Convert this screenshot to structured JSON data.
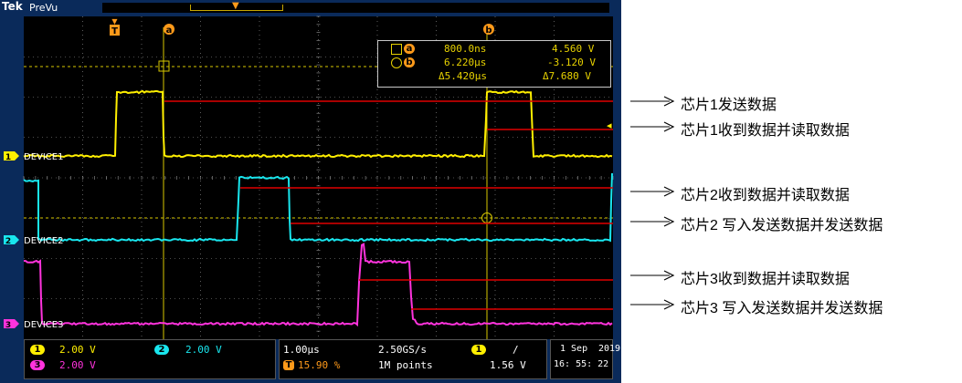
{
  "titlebar": {
    "brand": "Tek",
    "mode": "PreVu"
  },
  "channels": [
    {
      "id": "1",
      "label": "DEVICE1",
      "color": "#ffef00",
      "scale": "2.00 V"
    },
    {
      "id": "2",
      "label": "DEVICE2",
      "color": "#19e6ee",
      "scale": "2.00 V"
    },
    {
      "id": "3",
      "label": "DEVICE3",
      "color": "#ff33dd",
      "scale": "2.00 V"
    }
  ],
  "markers": {
    "cursor_a": "a",
    "cursor_b": "b",
    "trigger": "T"
  },
  "cursor_readout": {
    "a_time": "800.0ns",
    "a_volt": "4.560 V",
    "b_time": "6.220μs",
    "b_volt": "-3.120 V",
    "delta_time": "Δ5.420μs",
    "delta_volt": "Δ7.680 V"
  },
  "status": {
    "ch1_scale": "2.00 V",
    "ch2_scale": "2.00 V",
    "ch3_scale": "2.00 V",
    "timebase": "1.00μs",
    "trigger_pos": "15.90 %",
    "sample_rate": "2.50GS/s",
    "record_length": "1M points",
    "trigger_channel": "1",
    "trigger_slope": "/",
    "trigger_level": "1.56 V",
    "date": "1 Sep",
    "year": "2019",
    "time": "16: 55: 22"
  },
  "annotations": [
    "芯片1发送数据",
    "芯片1收到数据并读取数据",
    "芯片2收到数据并读取数据",
    "芯片2 写入发送数据并发送数据",
    "芯片3收到数据并读取数据",
    "芯片3 写入发送数据并发送数据"
  ],
  "colors": {
    "annotation_line": "#e00000",
    "cursor_line": "#d8c800",
    "grid": "#9a9a9a"
  }
}
